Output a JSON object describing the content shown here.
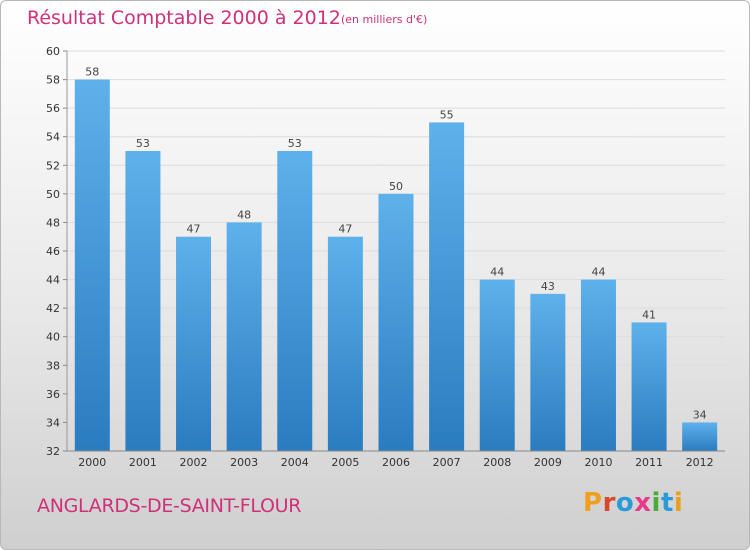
{
  "header": {
    "title": "Résultat Comptable 2000 à 2012",
    "subtitle": "(en milliers d'€)"
  },
  "footer": {
    "commune": "ANGLARDS-DE-SAINT-FLOUR",
    "logo": [
      "P",
      "r",
      "o",
      "x",
      "i",
      "t",
      "i"
    ]
  },
  "colors": {
    "title": "#d0307a",
    "bar_top": "#5eb1ea",
    "bar_bottom": "#2a7cc0",
    "logo": [
      "#f0a020",
      "#d84a2a",
      "#2a9ad8",
      "#e83a8a",
      "#4aaa3a",
      "#2a9ad8",
      "#e8a020"
    ]
  },
  "chart_data": {
    "type": "bar",
    "categories": [
      "2000",
      "2001",
      "2002",
      "2003",
      "2004",
      "2005",
      "2006",
      "2007",
      "2008",
      "2009",
      "2010",
      "2011",
      "2012"
    ],
    "values": [
      58,
      53,
      47,
      48,
      53,
      47,
      50,
      55,
      44,
      43,
      44,
      41,
      34
    ],
    "ylim": [
      32,
      60
    ],
    "yticks": [
      32,
      34,
      36,
      38,
      40,
      42,
      44,
      46,
      48,
      50,
      52,
      54,
      56,
      58,
      60
    ],
    "grid": true,
    "data_labels": true
  }
}
